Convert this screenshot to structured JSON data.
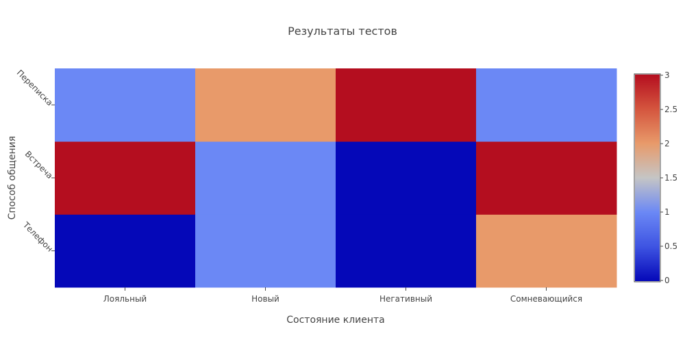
{
  "chart_data": {
    "type": "heatmap",
    "title": "Результаты тестов",
    "xlabel": "Состояние клиента",
    "ylabel": "Способ общения",
    "x_categories": [
      "Лояльный",
      "Новый",
      "Негативный",
      "Сомневающийся"
    ],
    "y_categories": [
      "Телефон",
      "Встреча",
      "Переписка"
    ],
    "z": [
      [
        0,
        1,
        0,
        2
      ],
      [
        3,
        1,
        0,
        3
      ],
      [
        1,
        2,
        3,
        1
      ]
    ],
    "colorscale": "coolwarm",
    "colorbar": {
      "range": [
        0,
        3
      ],
      "ticks": [
        "0",
        "0.5",
        "1",
        "1.5",
        "2",
        "2.5",
        "3"
      ]
    }
  }
}
